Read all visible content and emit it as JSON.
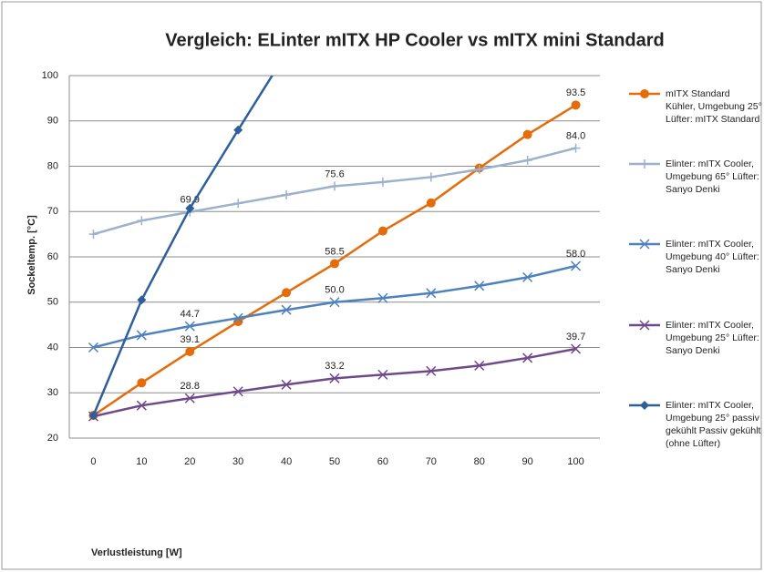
{
  "chart_data": {
    "type": "line",
    "title": "Vergleich: ELinter mITX  HP Cooler vs mITX mini Standard",
    "x_label": "Verlustleistung [W]",
    "y_label": "Sockeltemp. [°C]",
    "x": [
      0,
      10,
      20,
      30,
      40,
      50,
      60,
      70,
      80,
      90,
      100
    ],
    "xlim": [
      -5,
      105
    ],
    "xticks": [
      0,
      10,
      20,
      30,
      40,
      50,
      60,
      70,
      80,
      90,
      100
    ],
    "ylim": [
      20,
      100
    ],
    "yticks": [
      20,
      30,
      40,
      50,
      60,
      70,
      80,
      90,
      100
    ],
    "grid": true,
    "legend": "right",
    "series": [
      {
        "name": "mITX Standard Kühler, Umgebung 25° Lüfter: mITX Standard",
        "color": "#e46c0a",
        "marker": "circle",
        "values": [
          25,
          32.2,
          39.1,
          45.7,
          52.1,
          58.5,
          65.7,
          71.9,
          79.6,
          87,
          93.5
        ],
        "value_labels": [
          null,
          null,
          "39.1",
          null,
          null,
          "58.5",
          null,
          null,
          null,
          null,
          "93.5"
        ]
      },
      {
        "name": "Elinter: mITX Cooler, Umgebung 65° Lüfter: Sanyo Denki",
        "color": "#9bb1cc",
        "marker": "plus",
        "values": [
          65,
          68,
          69.9,
          71.8,
          73.7,
          75.6,
          76.5,
          77.6,
          79.3,
          81.3,
          84
        ],
        "value_labels": [
          null,
          null,
          "69.9",
          null,
          null,
          "75.6",
          null,
          null,
          null,
          null,
          "84.0"
        ]
      },
      {
        "name": "Elinter: mITX Cooler, Umgebung 40° Lüfter: Sanyo Denki",
        "color": "#4f81bd",
        "marker": "x",
        "values": [
          40,
          42.7,
          44.7,
          46.5,
          48.3,
          50,
          50.9,
          52,
          53.6,
          55.5,
          58
        ],
        "value_labels": [
          null,
          null,
          "44.7",
          null,
          null,
          "50.0",
          null,
          null,
          null,
          null,
          "58.0"
        ]
      },
      {
        "name": "Elinter: mITX Cooler, Umgebung 25° Lüfter: Sanyo Denki",
        "color": "#6f4a8a",
        "marker": "x",
        "values": [
          24.8,
          27.2,
          28.8,
          30.3,
          31.8,
          33.2,
          34,
          34.8,
          36,
          37.7,
          39.7
        ],
        "value_labels": [
          null,
          null,
          "28.8",
          null,
          null,
          "33.2",
          null,
          null,
          null,
          null,
          "39.7"
        ]
      },
      {
        "name": "Elinter: mITX Cooler, Umgebung 25° passiv gekühlt Passiv gekühlt (ohne Lüfter)",
        "color": "#2f5f98",
        "marker": "diamond",
        "values": [
          25,
          50.5,
          70.7,
          88,
          105,
          null,
          null,
          null,
          null,
          null,
          null
        ]
      }
    ]
  }
}
